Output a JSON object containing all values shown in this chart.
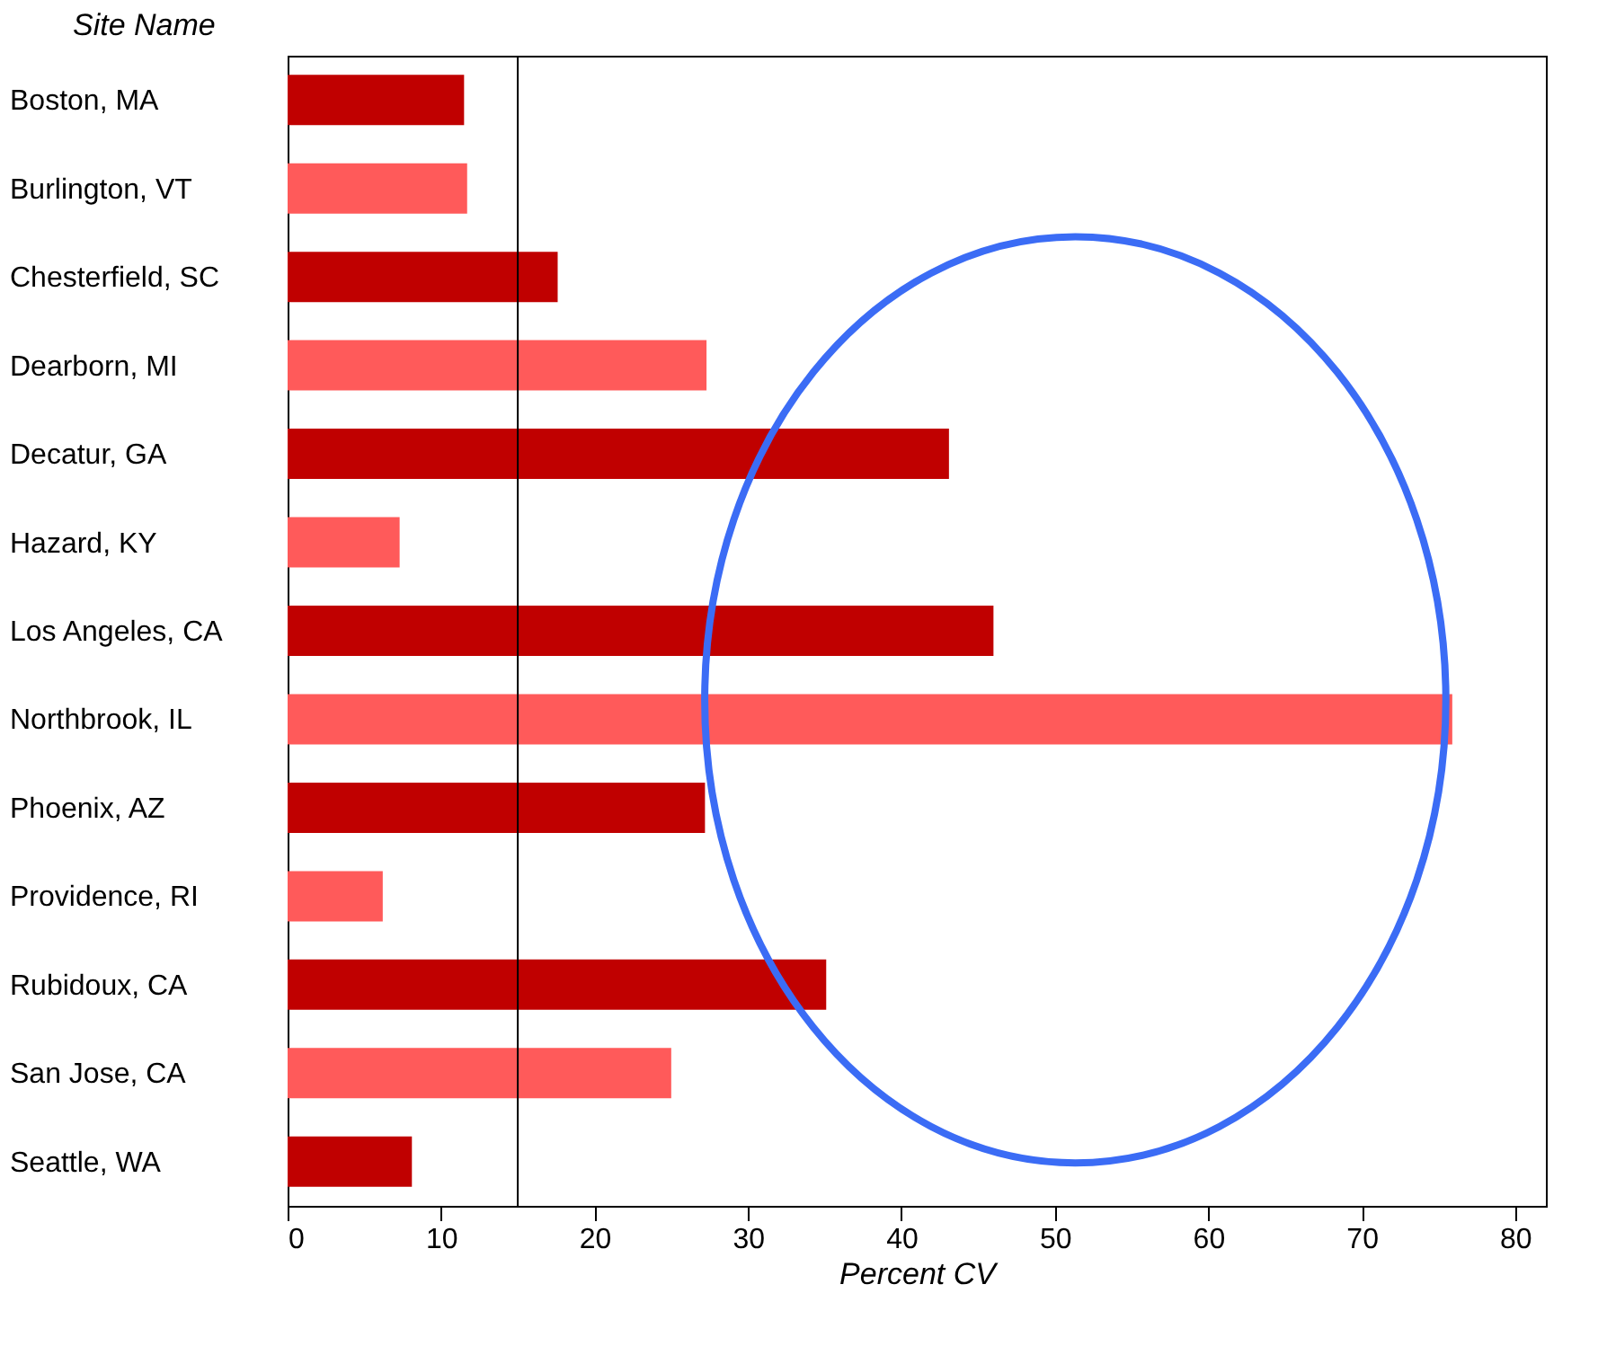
{
  "chart_data": {
    "type": "bar",
    "orientation": "horizontal",
    "xlabel": "Percent CV",
    "ylabel": "Site Name",
    "categories": [
      "Boston, MA",
      "Burlington, VT",
      "Chesterfield, SC",
      "Dearborn, MI",
      "Decatur, GA",
      "Hazard, KY",
      "Los Angeles, CA",
      "Northbrook, IL",
      "Phoenix, AZ",
      "Providence, RI",
      "Rubidoux, CA",
      "San Jose, CA",
      "Seattle, WA"
    ],
    "values": [
      11.5,
      11.7,
      17.6,
      27.3,
      43.1,
      7.3,
      46.0,
      75.9,
      27.2,
      6.2,
      35.1,
      25.0,
      8.1
    ],
    "colors": [
      "#c00000",
      "#ff5a5a",
      "#c00000",
      "#ff5a5a",
      "#c00000",
      "#ff5a5a",
      "#c00000",
      "#ff5a5a",
      "#c00000",
      "#ff5a5a",
      "#c00000",
      "#ff5a5a",
      "#c00000"
    ],
    "xlim": [
      0,
      82
    ],
    "xticks": [
      0,
      10,
      20,
      30,
      40,
      50,
      60,
      70,
      80
    ],
    "grid": false,
    "legend": false,
    "ref_lines": [
      {
        "axis": "x",
        "value": 15,
        "color": "#000000"
      }
    ]
  }
}
